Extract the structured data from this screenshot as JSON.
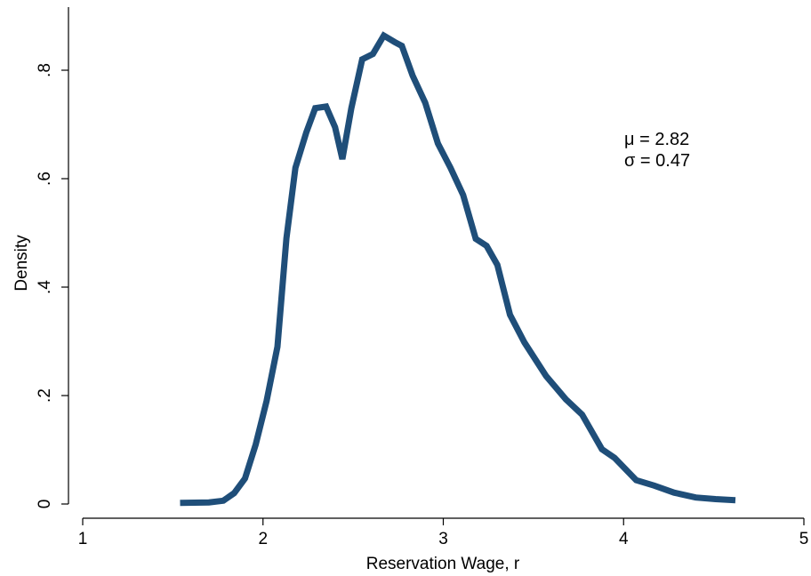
{
  "chart_data": {
    "type": "line",
    "xlabel": "Reservation Wage, r",
    "ylabel": "Density",
    "xlim": [
      1,
      5
    ],
    "ylim": [
      0,
      0.87
    ],
    "xticks": [
      {
        "value": 1,
        "label": "1"
      },
      {
        "value": 2,
        "label": "2"
      },
      {
        "value": 3,
        "label": "3"
      },
      {
        "value": 4,
        "label": "4"
      },
      {
        "value": 5,
        "label": "5"
      }
    ],
    "yticks": [
      {
        "value": 0,
        "label": "0"
      },
      {
        "value": 0.2,
        "label": ".2"
      },
      {
        "value": 0.4,
        "label": ".4"
      },
      {
        "value": 0.6,
        "label": ".6"
      },
      {
        "value": 0.8,
        "label": ".8"
      }
    ],
    "grid": false,
    "annotations": [
      "μ = 2.82",
      "σ = 0.47"
    ],
    "series": [
      {
        "color": "#1f4e79",
        "x": [
          1.54,
          1.7,
          1.78,
          1.84,
          1.9,
          1.96,
          2.02,
          2.08,
          2.13,
          2.18,
          2.24,
          2.29,
          2.35,
          2.4,
          2.44,
          2.49,
          2.55,
          2.61,
          2.67,
          2.73,
          2.77,
          2.83,
          2.9,
          2.97,
          3.04,
          3.11,
          3.18,
          3.24,
          3.3,
          3.37,
          3.45,
          3.57,
          3.68,
          3.77,
          3.88,
          3.95,
          4.07,
          4.17,
          4.28,
          4.4,
          4.51,
          4.62
        ],
        "y": [
          0.002,
          0.003,
          0.006,
          0.02,
          0.047,
          0.11,
          0.19,
          0.29,
          0.49,
          0.62,
          0.685,
          0.73,
          0.733,
          0.695,
          0.636,
          0.73,
          0.82,
          0.83,
          0.864,
          0.852,
          0.845,
          0.79,
          0.74,
          0.665,
          0.62,
          0.57,
          0.489,
          0.476,
          0.441,
          0.349,
          0.298,
          0.236,
          0.193,
          0.165,
          0.101,
          0.085,
          0.044,
          0.034,
          0.021,
          0.012,
          0.009,
          0.007
        ]
      }
    ]
  }
}
